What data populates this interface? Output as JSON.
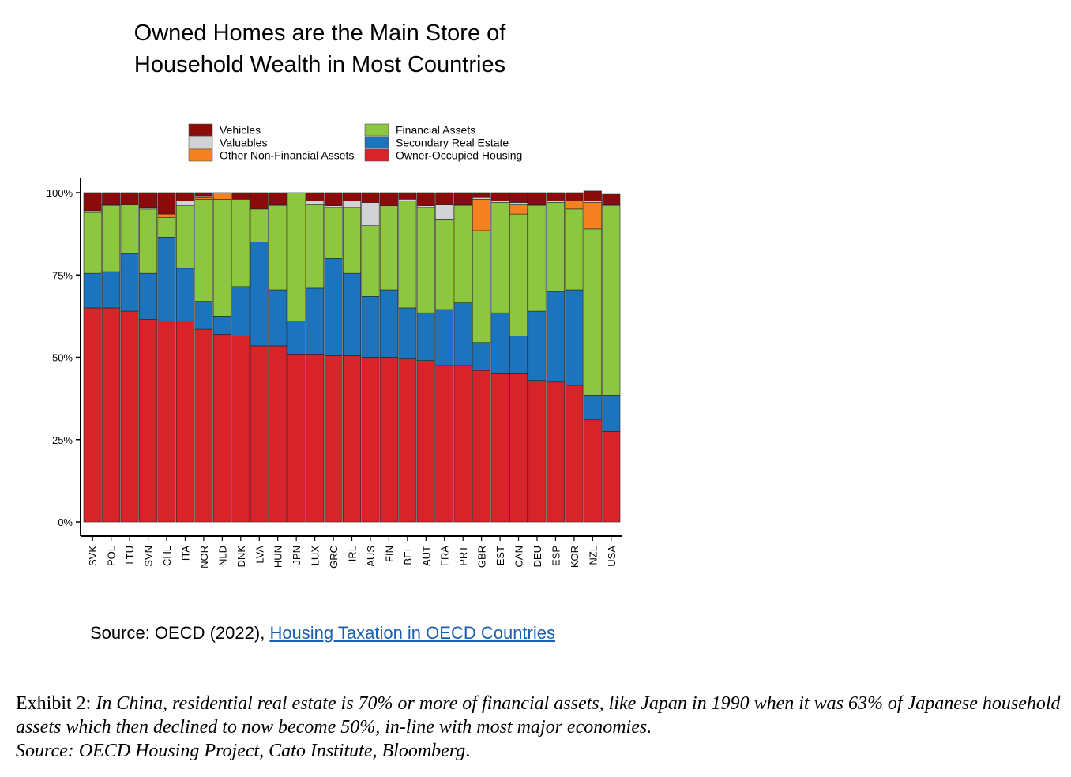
{
  "header": {
    "title_line1": "Owned Homes are the Main Store of",
    "title_line2": "Household Wealth in Most Countries"
  },
  "chart_data": {
    "type": "bar",
    "stacked": true,
    "categories": [
      "SVK",
      "POL",
      "LTU",
      "SVN",
      "CHL",
      "ITA",
      "NOR",
      "NLD",
      "DNK",
      "LVA",
      "HUN",
      "JPN",
      "LUX",
      "GRC",
      "IRL",
      "AUS",
      "FIN",
      "BEL",
      "AUT",
      "FRA",
      "PRT",
      "GBR",
      "EST",
      "CAN",
      "DEU",
      "ESP",
      "KOR",
      "NZL",
      "USA"
    ],
    "ylim": [
      0,
      100
    ],
    "yticks": [
      0,
      25,
      50,
      75,
      100
    ],
    "ytick_labels": [
      "0%",
      "25%",
      "50%",
      "75%",
      "100%"
    ],
    "grid": false,
    "legend_position": "top",
    "series": [
      {
        "name": "Owner-Occupied Housing",
        "color": "#d7232a",
        "values": [
          65,
          65,
          64,
          61.5,
          61,
          61,
          58.5,
          57,
          56.5,
          53.5,
          53.5,
          51,
          51,
          50.5,
          50.5,
          50,
          50,
          49.5,
          49,
          47.5,
          47.5,
          46,
          45,
          45,
          43,
          42.5,
          41.5,
          31,
          27.5
        ]
      },
      {
        "name": "Secondary Real Estate",
        "color": "#1c75bc",
        "values": [
          10.5,
          11,
          17.5,
          14,
          25.5,
          16,
          8.5,
          5.5,
          15,
          31.5,
          17,
          10,
          20,
          29.5,
          25,
          18.5,
          20.5,
          15.5,
          14.5,
          17,
          19,
          8.5,
          18.5,
          11.5,
          21,
          27.5,
          29,
          7.5,
          11
        ]
      },
      {
        "name": "Financial Assets",
        "color": "#8dc63f",
        "values": [
          18.5,
          20,
          15,
          19.5,
          6,
          19,
          31,
          35.5,
          26.5,
          10,
          25.5,
          39,
          25.5,
          15.5,
          20,
          21.5,
          25.5,
          32.5,
          32,
          27.5,
          29.5,
          34,
          33.5,
          37,
          32,
          27,
          24.5,
          50.5,
          57.5
        ]
      },
      {
        "name": "Other Non-Financial Assets",
        "color": "#f58220",
        "values": [
          0,
          0,
          0,
          0,
          1,
          0,
          0.5,
          2,
          0,
          0,
          0,
          0,
          0,
          0,
          0,
          0,
          0,
          0,
          0,
          0,
          0,
          9.5,
          0,
          3,
          0,
          0,
          2.5,
          8,
          0
        ]
      },
      {
        "name": "Valuables",
        "color": "#d1d3d4",
        "values": [
          0.5,
          0.5,
          0,
          0.5,
          0,
          1.5,
          0.5,
          0,
          0,
          0,
          0.5,
          0,
          1,
          0.5,
          2,
          7,
          0,
          0.5,
          0.5,
          4.5,
          0.5,
          0.5,
          0.5,
          0.5,
          0.5,
          0.5,
          0,
          0.5,
          0.5
        ]
      },
      {
        "name": "Vehicles",
        "color": "#8b0a0a",
        "values": [
          5.5,
          3.5,
          3.5,
          4.5,
          6.5,
          2.5,
          1,
          0,
          2,
          5,
          3.5,
          0,
          2.5,
          4,
          2.5,
          3,
          4,
          2,
          4,
          3.5,
          3.5,
          1.5,
          2.5,
          3,
          3.5,
          2.5,
          2.5,
          3,
          3
        ]
      }
    ],
    "legend_order": [
      "Vehicles",
      "Valuables",
      "Other Non-Financial Assets",
      "Financial Assets",
      "Secondary Real Estate",
      "Owner-Occupied Housing"
    ]
  },
  "source": {
    "prefix": "Source: OECD (2022), ",
    "link_text": "Housing Taxation in OECD Countries"
  },
  "caption": {
    "lead": "Exhibit 2: ",
    "body": "In China, residential real estate is 70% or more of financial assets, like Japan in 1990 when it was 63% of Japanese household assets which then declined to now become 50%, in-line with most major economies.",
    "source_prefix": "Source: OECD Housing Project, Cato Institute, Bloomberg",
    "source_end": "."
  }
}
